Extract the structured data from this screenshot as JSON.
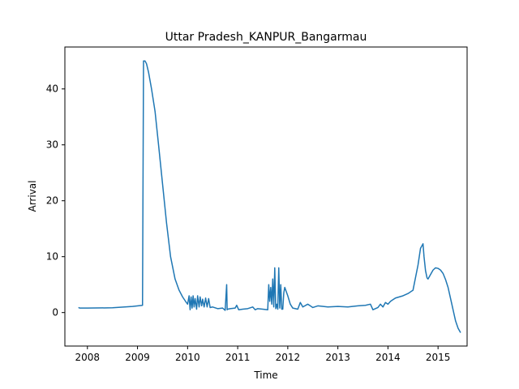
{
  "chart_data": {
    "type": "line",
    "title": "Uttar Pradesh_KANPUR_Bangarmau",
    "xlabel": "Time",
    "ylabel": "Arrival",
    "xlim": [
      2007.55,
      2015.58
    ],
    "ylim": [
      -5.99,
      47.5
    ],
    "xticks": [
      2008,
      2009,
      2010,
      2011,
      2012,
      2013,
      2014,
      2015
    ],
    "xtick_labels": [
      "2008",
      "2009",
      "2010",
      "2011",
      "2012",
      "2013",
      "2014",
      "2015"
    ],
    "yticks": [
      0,
      10,
      20,
      30,
      40
    ],
    "ytick_labels": [
      "0",
      "10",
      "20",
      "30",
      "40"
    ],
    "grid": false,
    "line_color": "#1f77b4",
    "series": [
      {
        "x": [
          2007.82,
          2007.85,
          2008.0,
          2008.5,
          2008.9,
          2009.1,
          2009.12,
          2009.15,
          2009.18,
          2009.22,
          2009.28,
          2009.35,
          2009.42,
          2009.5,
          2009.58,
          2009.66,
          2009.75,
          2009.83,
          2009.9,
          2009.96,
          2010.0,
          2010.03,
          2010.05,
          2010.07,
          2010.09,
          2010.11,
          2010.13,
          2010.15,
          2010.18,
          2010.2,
          2010.23,
          2010.25,
          2010.28,
          2010.3,
          2010.33,
          2010.36,
          2010.39,
          2010.42,
          2010.45,
          2010.5,
          2010.6,
          2010.7,
          2010.75,
          2010.78,
          2010.79,
          2010.8,
          2010.85,
          2010.95,
          2010.98,
          2011.02,
          2011.1,
          2011.2,
          2011.3,
          2011.35,
          2011.4,
          2011.5,
          2011.6,
          2011.62,
          2011.64,
          2011.66,
          2011.68,
          2011.7,
          2011.72,
          2011.74,
          2011.76,
          2011.78,
          2011.8,
          2011.82,
          2011.84,
          2011.86,
          2011.88,
          2011.9,
          2011.92,
          2011.94,
          2011.96,
          2012.0,
          2012.05,
          2012.1,
          2012.2,
          2012.25,
          2012.3,
          2012.4,
          2012.5,
          2012.6,
          2012.8,
          2013.0,
          2013.2,
          2013.4,
          2013.55,
          2013.65,
          2013.7,
          2013.8,
          2013.85,
          2013.9,
          2013.95,
          2014.0,
          2014.05,
          2014.1,
          2014.15,
          2014.3,
          2014.4,
          2014.5,
          2014.6,
          2014.65,
          2014.7,
          2014.72,
          2014.75,
          2014.78,
          2014.8,
          2014.85,
          2014.9,
          2014.95,
          2015.0,
          2015.05,
          2015.1,
          2015.15,
          2015.2,
          2015.25,
          2015.3,
          2015.35,
          2015.4,
          2015.45
        ],
        "y": [
          0.9,
          0.8,
          0.8,
          0.85,
          1.1,
          1.3,
          45.0,
          45.0,
          44.5,
          43.0,
          40.0,
          36.0,
          30.0,
          23.0,
          16.0,
          10.0,
          6.0,
          4.0,
          2.8,
          2.0,
          1.5,
          3.0,
          0.5,
          2.8,
          0.8,
          3.0,
          1.0,
          2.5,
          0.6,
          3.0,
          1.0,
          2.8,
          1.2,
          2.4,
          1.0,
          2.6,
          1.0,
          2.5,
          0.9,
          1.0,
          0.7,
          0.8,
          0.4,
          5.0,
          0.5,
          0.6,
          0.7,
          0.8,
          1.3,
          0.5,
          0.6,
          0.7,
          1.0,
          0.5,
          0.7,
          0.6,
          0.5,
          5.0,
          2.0,
          4.5,
          1.5,
          6.0,
          1.0,
          8.0,
          0.7,
          1.5,
          0.6,
          8.0,
          0.8,
          5.0,
          0.6,
          0.6,
          3.5,
          4.5,
          4.0,
          3.0,
          1.5,
          0.8,
          0.6,
          1.8,
          1.0,
          1.5,
          0.9,
          1.2,
          1.0,
          1.1,
          1.0,
          1.2,
          1.3,
          1.5,
          0.5,
          0.9,
          1.5,
          1.0,
          1.8,
          1.5,
          2.0,
          2.3,
          2.6,
          3.0,
          3.4,
          4.0,
          8.5,
          11.5,
          12.3,
          10.0,
          7.5,
          6.2,
          6.0,
          6.8,
          7.6,
          8.0,
          7.9,
          7.6,
          7.0,
          5.9,
          4.5,
          2.5,
          0.5,
          -1.5,
          -2.8,
          -3.6
        ]
      }
    ]
  }
}
